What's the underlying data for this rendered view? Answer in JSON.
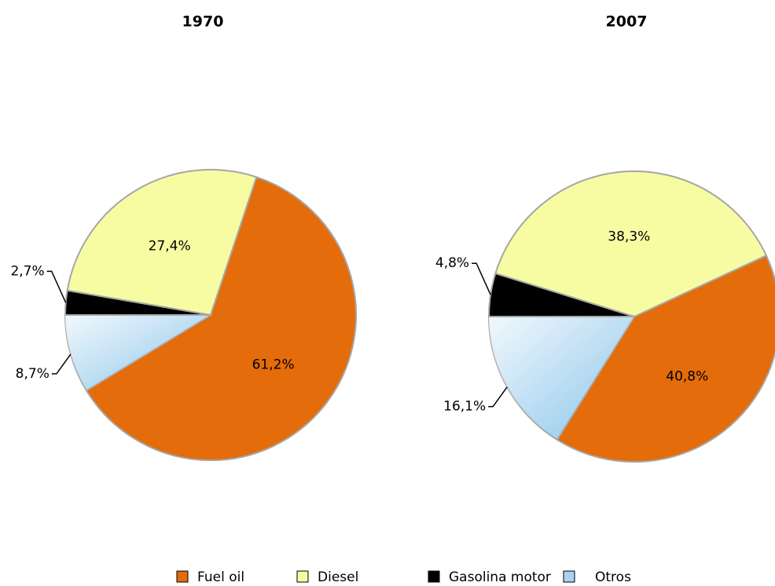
{
  "legend": {
    "labels": [
      "Fuel oil",
      "Diesel",
      "Gasolina motor",
      "Otros"
    ],
    "colors": [
      "#e46c0a",
      "#f7fca2",
      "#000000",
      "#a9d4f0"
    ]
  },
  "chart_data": [
    {
      "type": "pie",
      "title": "1970",
      "values": [
        61.2,
        27.4,
        2.7,
        8.7
      ],
      "value_labels": [
        "61,2%",
        "27,4%",
        "2,7%",
        "8,7%"
      ]
    },
    {
      "type": "pie",
      "title": "2007",
      "values": [
        40.8,
        38.3,
        4.8,
        16.1
      ],
      "value_labels": [
        "40,8%",
        "38,3%",
        "4,8%",
        "16,1%"
      ]
    }
  ]
}
